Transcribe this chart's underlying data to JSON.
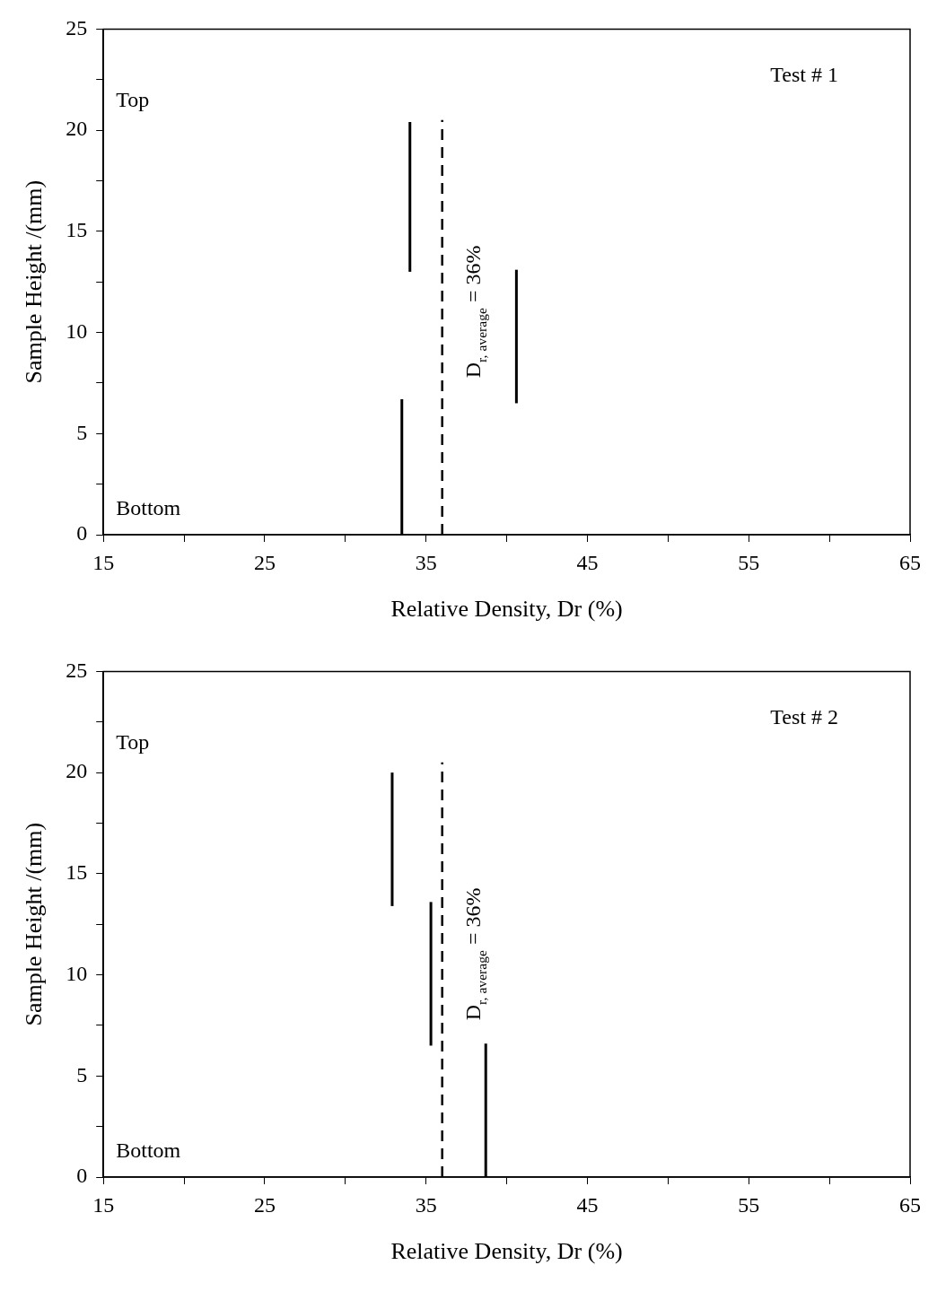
{
  "chart_data": [
    {
      "type": "line",
      "xlabel": "Relative Density, Dr (%)",
      "ylabel": "Sample Height /(mm)",
      "annotations": [
        "Top",
        "Bottom",
        "Test # 1"
      ],
      "series": [
        {
          "color": "#000000",
          "x": [
            33.5,
            33.5
          ],
          "values": [
            0,
            6.7
          ]
        },
        {
          "color": "#000000",
          "x": [
            34.0,
            34.0
          ],
          "values": [
            13.0,
            20.4
          ]
        },
        {
          "color": "#000000",
          "x": [
            40.6,
            40.6
          ],
          "values": [
            6.5,
            13.1
          ]
        }
      ],
      "ref_lines": [
        {
          "axis": "x",
          "value": 36,
          "label": "D$_{r, average}$ = 36%",
          "line_style": "dashed",
          "color": "#000000"
        }
      ],
      "xlim": [
        15,
        65
      ],
      "xticks": [
        15,
        {
          "value": 20,
          "label": null
        },
        25,
        {
          "value": 30,
          "label": null
        },
        35,
        {
          "value": 40,
          "label": null
        },
        45,
        {
          "value": 50,
          "label": null
        },
        55,
        {
          "value": 60,
          "label": null
        },
        65
      ],
      "ylim": [
        0,
        25
      ],
      "yticks": [
        0,
        {
          "value": 2.5,
          "label": null
        },
        5,
        {
          "value": 7.5,
          "label": null
        },
        10,
        {
          "value": 12.5,
          "label": null
        },
        15,
        {
          "value": 17.5,
          "label": null
        },
        20,
        {
          "value": 22.5,
          "label": null
        },
        25
      ],
      "grid": false,
      "legend": false,
      "marker": "none",
      "line_style": "solid"
    },
    {
      "type": "line",
      "xlabel": "Relative Density, Dr (%)",
      "ylabel": "Sample Height /(mm)",
      "annotations": [
        "Top",
        "Bottom",
        "Test # 2"
      ],
      "series": [
        {
          "color": "#000000",
          "x": [
            32.9,
            32.9
          ],
          "values": [
            13.4,
            20.0
          ]
        },
        {
          "color": "#000000",
          "x": [
            35.3,
            35.3
          ],
          "values": [
            6.5,
            13.6
          ]
        },
        {
          "color": "#000000",
          "x": [
            38.7,
            38.7
          ],
          "values": [
            0,
            6.6
          ]
        }
      ],
      "ref_lines": [
        {
          "axis": "x",
          "value": 36,
          "label": "D$_{r, average}$ = 36%",
          "line_style": "dashed",
          "color": "#000000"
        }
      ],
      "xlim": [
        15,
        65
      ],
      "xticks": [
        15,
        {
          "value": 20,
          "label": null
        },
        25,
        {
          "value": 30,
          "label": null
        },
        35,
        {
          "value": 40,
          "label": null
        },
        45,
        {
          "value": 50,
          "label": null
        },
        55,
        {
          "value": 60,
          "label": null
        },
        65
      ],
      "ylim": [
        0,
        25
      ],
      "yticks": [
        0,
        {
          "value": 2.5,
          "label": null
        },
        5,
        {
          "value": 7.5,
          "label": null
        },
        10,
        {
          "value": 12.5,
          "label": null
        },
        15,
        {
          "value": 17.5,
          "label": null
        },
        20,
        {
          "value": 22.5,
          "label": null
        },
        25
      ],
      "grid": false,
      "legend": false,
      "marker": "none",
      "line_style": "solid"
    }
  ]
}
